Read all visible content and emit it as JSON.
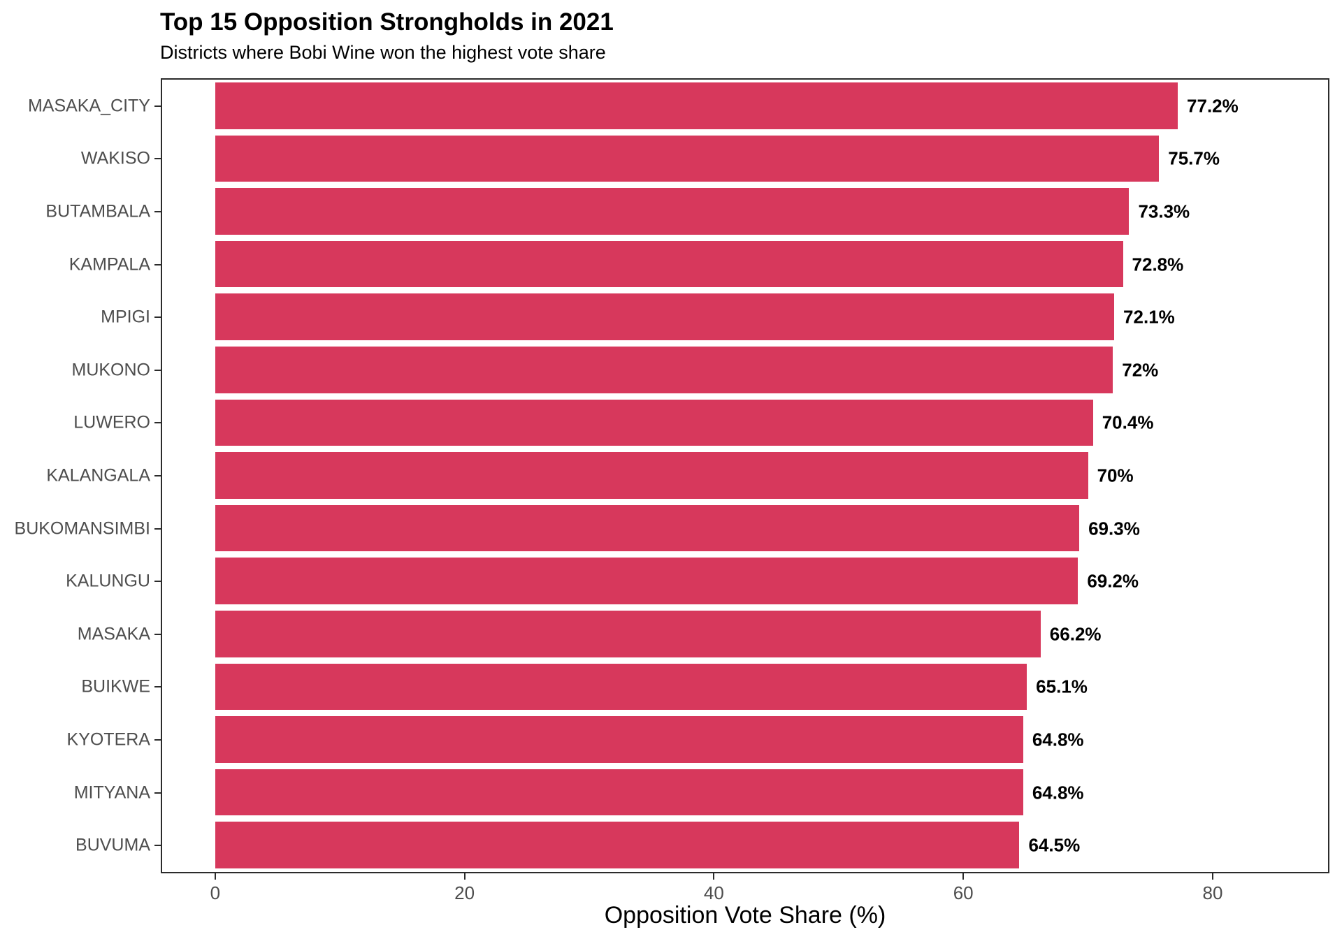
{
  "chart_data": {
    "type": "bar",
    "orientation": "horizontal",
    "title": "Top 15 Opposition Strongholds in 2021",
    "subtitle": "Districts where Bobi Wine won the highest vote share",
    "xlabel": "Opposition Vote Share (%)",
    "ylabel": "",
    "categories": [
      "MASAKA_CITY",
      "WAKISO",
      "BUTAMBALA",
      "KAMPALA",
      "MPIGI",
      "MUKONO",
      "LUWERO",
      "KALANGALA",
      "BUKOMANSIMBI",
      "KALUNGU",
      "MASAKA",
      "BUIKWE",
      "KYOTERA",
      "MITYANA",
      "BUVUMA"
    ],
    "values": [
      77.2,
      75.7,
      73.3,
      72.8,
      72.1,
      72,
      70.4,
      70,
      69.3,
      69.2,
      66.2,
      65.1,
      64.8,
      64.8,
      64.5
    ],
    "value_labels": [
      "77.2%",
      "75.7%",
      "73.3%",
      "72.8%",
      "72.1%",
      "72%",
      "70.4%",
      "70%",
      "69.3%",
      "69.2%",
      "66.2%",
      "65.1%",
      "64.8%",
      "64.8%",
      "64.5%"
    ],
    "x_ticks": [
      0,
      20,
      40,
      60,
      80
    ],
    "xlim": [
      -4.25,
      89.25
    ],
    "grid": false,
    "legend": "none",
    "bar_color": "#D7385C",
    "panel_border_color": "#2B2B2B",
    "axis_text_color": "#4D4D4D"
  }
}
